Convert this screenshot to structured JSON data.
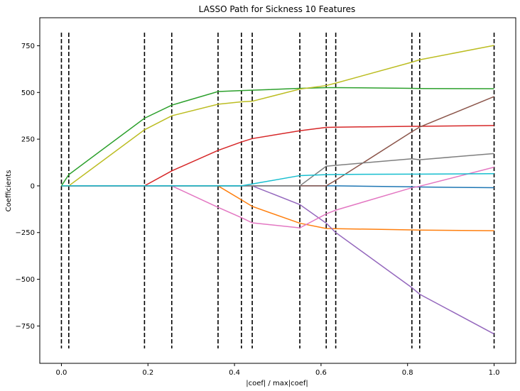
{
  "chart_data": {
    "type": "line",
    "title": "LASSO Path for Sickness 10 Features",
    "xlabel": "|coef| / max|coef|",
    "ylabel": "Coefficients",
    "xlim": [
      -0.05,
      1.05
    ],
    "ylim": [
      -950,
      900
    ],
    "xticks": [
      0.0,
      0.2,
      0.4,
      0.6,
      0.8,
      1.0
    ],
    "xtick_labels": [
      "0.0",
      "0.2",
      "0.4",
      "0.6",
      "0.8",
      "1.0"
    ],
    "yticks": [
      750,
      500,
      250,
      0,
      -250,
      -500,
      -750
    ],
    "ytick_labels": [
      "750",
      "500",
      "250",
      "0",
      "−250",
      "−500",
      "−750"
    ],
    "grid": false,
    "legend": "none",
    "vlines": {
      "x": [
        0.0,
        0.017,
        0.192,
        0.255,
        0.362,
        0.416,
        0.441,
        0.551,
        0.612,
        0.634,
        0.81,
        0.828,
        1.0
      ],
      "ymin": -870,
      "ymax": 820,
      "style": "dashed",
      "color": "#000000"
    },
    "x": [
      0.0,
      0.017,
      0.192,
      0.255,
      0.362,
      0.416,
      0.441,
      0.551,
      0.612,
      0.634,
      0.81,
      0.828,
      1.0
    ],
    "series": [
      {
        "color": "#1f77b4",
        "values": [
          0,
          0,
          0,
          0,
          0,
          0,
          0,
          0,
          0,
          0,
          -5,
          -6,
          -10
        ]
      },
      {
        "color": "#ff7f0e",
        "values": [
          0,
          0,
          0,
          0,
          0,
          -75,
          -110,
          -200,
          -228,
          -229,
          -236,
          -237,
          -240
        ]
      },
      {
        "color": "#2ca02c",
        "values": [
          0,
          60,
          362,
          432,
          505,
          510,
          512,
          522,
          526,
          526,
          522,
          521,
          520
        ]
      },
      {
        "color": "#d62728",
        "values": [
          0,
          0,
          0,
          80,
          190,
          235,
          253,
          295,
          313,
          314,
          319,
          319,
          323
        ]
      },
      {
        "color": "#9467bd",
        "values": [
          0,
          0,
          0,
          0,
          0,
          0,
          0,
          -100,
          -200,
          -250,
          -545,
          -580,
          -793
        ]
      },
      {
        "color": "#8c564b",
        "values": [
          0,
          0,
          0,
          0,
          0,
          0,
          0,
          0,
          0,
          30,
          290,
          315,
          478
        ]
      },
      {
        "color": "#e377c2",
        "values": [
          0,
          0,
          0,
          0,
          -115,
          -170,
          -198,
          -225,
          -150,
          -130,
          -10,
          -2,
          100
        ]
      },
      {
        "color": "#7f7f7f",
        "values": [
          0,
          0,
          0,
          0,
          0,
          0,
          0,
          0,
          105,
          110,
          145,
          140,
          173
        ]
      },
      {
        "color": "#bcbd22",
        "values": [
          0,
          0,
          300,
          375,
          437,
          450,
          453,
          518,
          537,
          550,
          662,
          675,
          752
        ]
      },
      {
        "color": "#17becf",
        "values": [
          0,
          0,
          0,
          0,
          0,
          0,
          10,
          55,
          60,
          61,
          63,
          63,
          65
        ]
      }
    ]
  }
}
